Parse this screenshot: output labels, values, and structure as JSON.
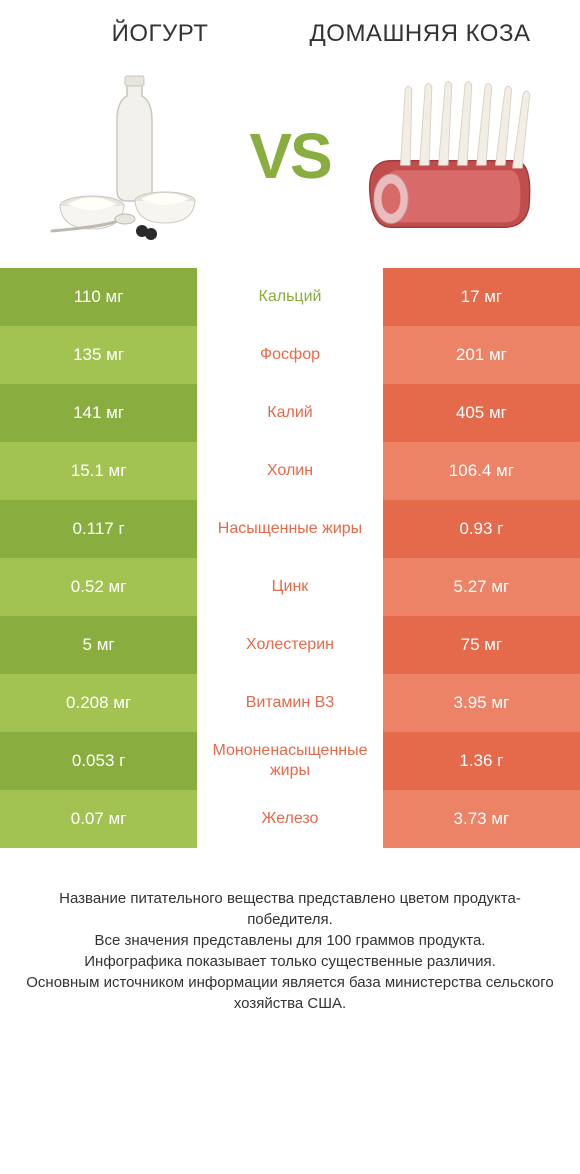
{
  "header": {
    "left_title": "ЙОГУРТ",
    "right_title": "ДОМАШНЯЯ КОЗА",
    "vs_text": "VS"
  },
  "colors": {
    "green_strong": "#8aad3f",
    "green_light": "#a2c351",
    "orange_strong": "#e46a4b",
    "orange_light": "#ec8367",
    "white": "#ffffff",
    "text_dark": "#333333"
  },
  "table": {
    "left_bar_colors_alt": [
      "#8aad3f",
      "#a2c351"
    ],
    "right_bar_color": "#e46a4b",
    "right_bar_color_alt": "#ec8367",
    "rows": [
      {
        "label": "Кальций",
        "left": "110 мг",
        "right": "17 мг",
        "winner": "left"
      },
      {
        "label": "Фосфор",
        "left": "135 мг",
        "right": "201 мг",
        "winner": "right"
      },
      {
        "label": "Калий",
        "left": "141 мг",
        "right": "405 мг",
        "winner": "right"
      },
      {
        "label": "Холин",
        "left": "15.1 мг",
        "right": "106.4 мг",
        "winner": "right"
      },
      {
        "label": "Насыщенные жиры",
        "left": "0.117 г",
        "right": "0.93 г",
        "winner": "right"
      },
      {
        "label": "Цинк",
        "left": "0.52 мг",
        "right": "5.27 мг",
        "winner": "right"
      },
      {
        "label": "Холестерин",
        "left": "5 мг",
        "right": "75 мг",
        "winner": "right"
      },
      {
        "label": "Витамин B3",
        "left": "0.208 мг",
        "right": "3.95 мг",
        "winner": "right"
      },
      {
        "label": "Мононенасыщенные жиры",
        "left": "0.053 г",
        "right": "1.36 г",
        "winner": "right"
      },
      {
        "label": "Железо",
        "left": "0.07 мг",
        "right": "3.73 мг",
        "winner": "right"
      }
    ]
  },
  "footer": {
    "line1": "Название питательного вещества представлено цветом продукта-победителя.",
    "line2": "Все значения представлены для 100 граммов продукта.",
    "line3": "Инфографика показывает только существенные различия.",
    "line4": "Основным источником информации является база министерства сельского хозяйства США."
  },
  "typography": {
    "title_fontsize": 24,
    "vs_fontsize": 64,
    "cell_fontsize": 17,
    "label_fontsize": 16,
    "footer_fontsize": 15
  }
}
